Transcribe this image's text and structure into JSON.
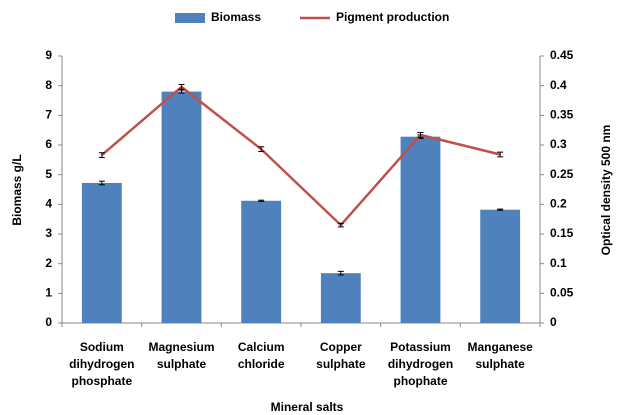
{
  "chart_data": {
    "type": "bar_line",
    "categories": [
      [
        "Sodium",
        "dihydrogen",
        "phosphate"
      ],
      [
        "Magnesium",
        "sulphate"
      ],
      [
        "Calcium",
        "chloride"
      ],
      [
        "Copper",
        "sulphate"
      ],
      [
        "Potassium",
        "dihydrogen",
        "phophate"
      ],
      [
        "Manganese",
        "sulphate"
      ]
    ],
    "xlabel": "Mineral salts",
    "ylabel": "Biomass g/L",
    "y2label": "Optical density 500 nm",
    "series": [
      {
        "name": "Biomass",
        "type": "bar",
        "color": "#4f81bd",
        "values": [
          4.72,
          7.8,
          4.12,
          1.68,
          6.28,
          3.82
        ],
        "errors": [
          0.06,
          0.05,
          0.02,
          0.06,
          0.06,
          0.02
        ]
      },
      {
        "name": "Pigment production",
        "type": "line",
        "axis": "y2",
        "color": "#c0504d",
        "values": [
          0.283,
          0.398,
          0.293,
          0.165,
          0.317,
          0.284
        ],
        "errors": [
          0.004,
          0.004,
          0.004,
          0.003,
          0.004,
          0.004
        ]
      }
    ],
    "ylim": [
      0,
      9
    ],
    "yticks": [
      0,
      1,
      2,
      3,
      4,
      5,
      6,
      7,
      8,
      9
    ],
    "y2lim": [
      0,
      0.45
    ],
    "y2ticks": [
      0,
      0.05,
      0.1,
      0.15,
      0.2,
      0.25,
      0.3,
      0.35,
      0.4,
      0.45
    ],
    "legend": "top"
  }
}
